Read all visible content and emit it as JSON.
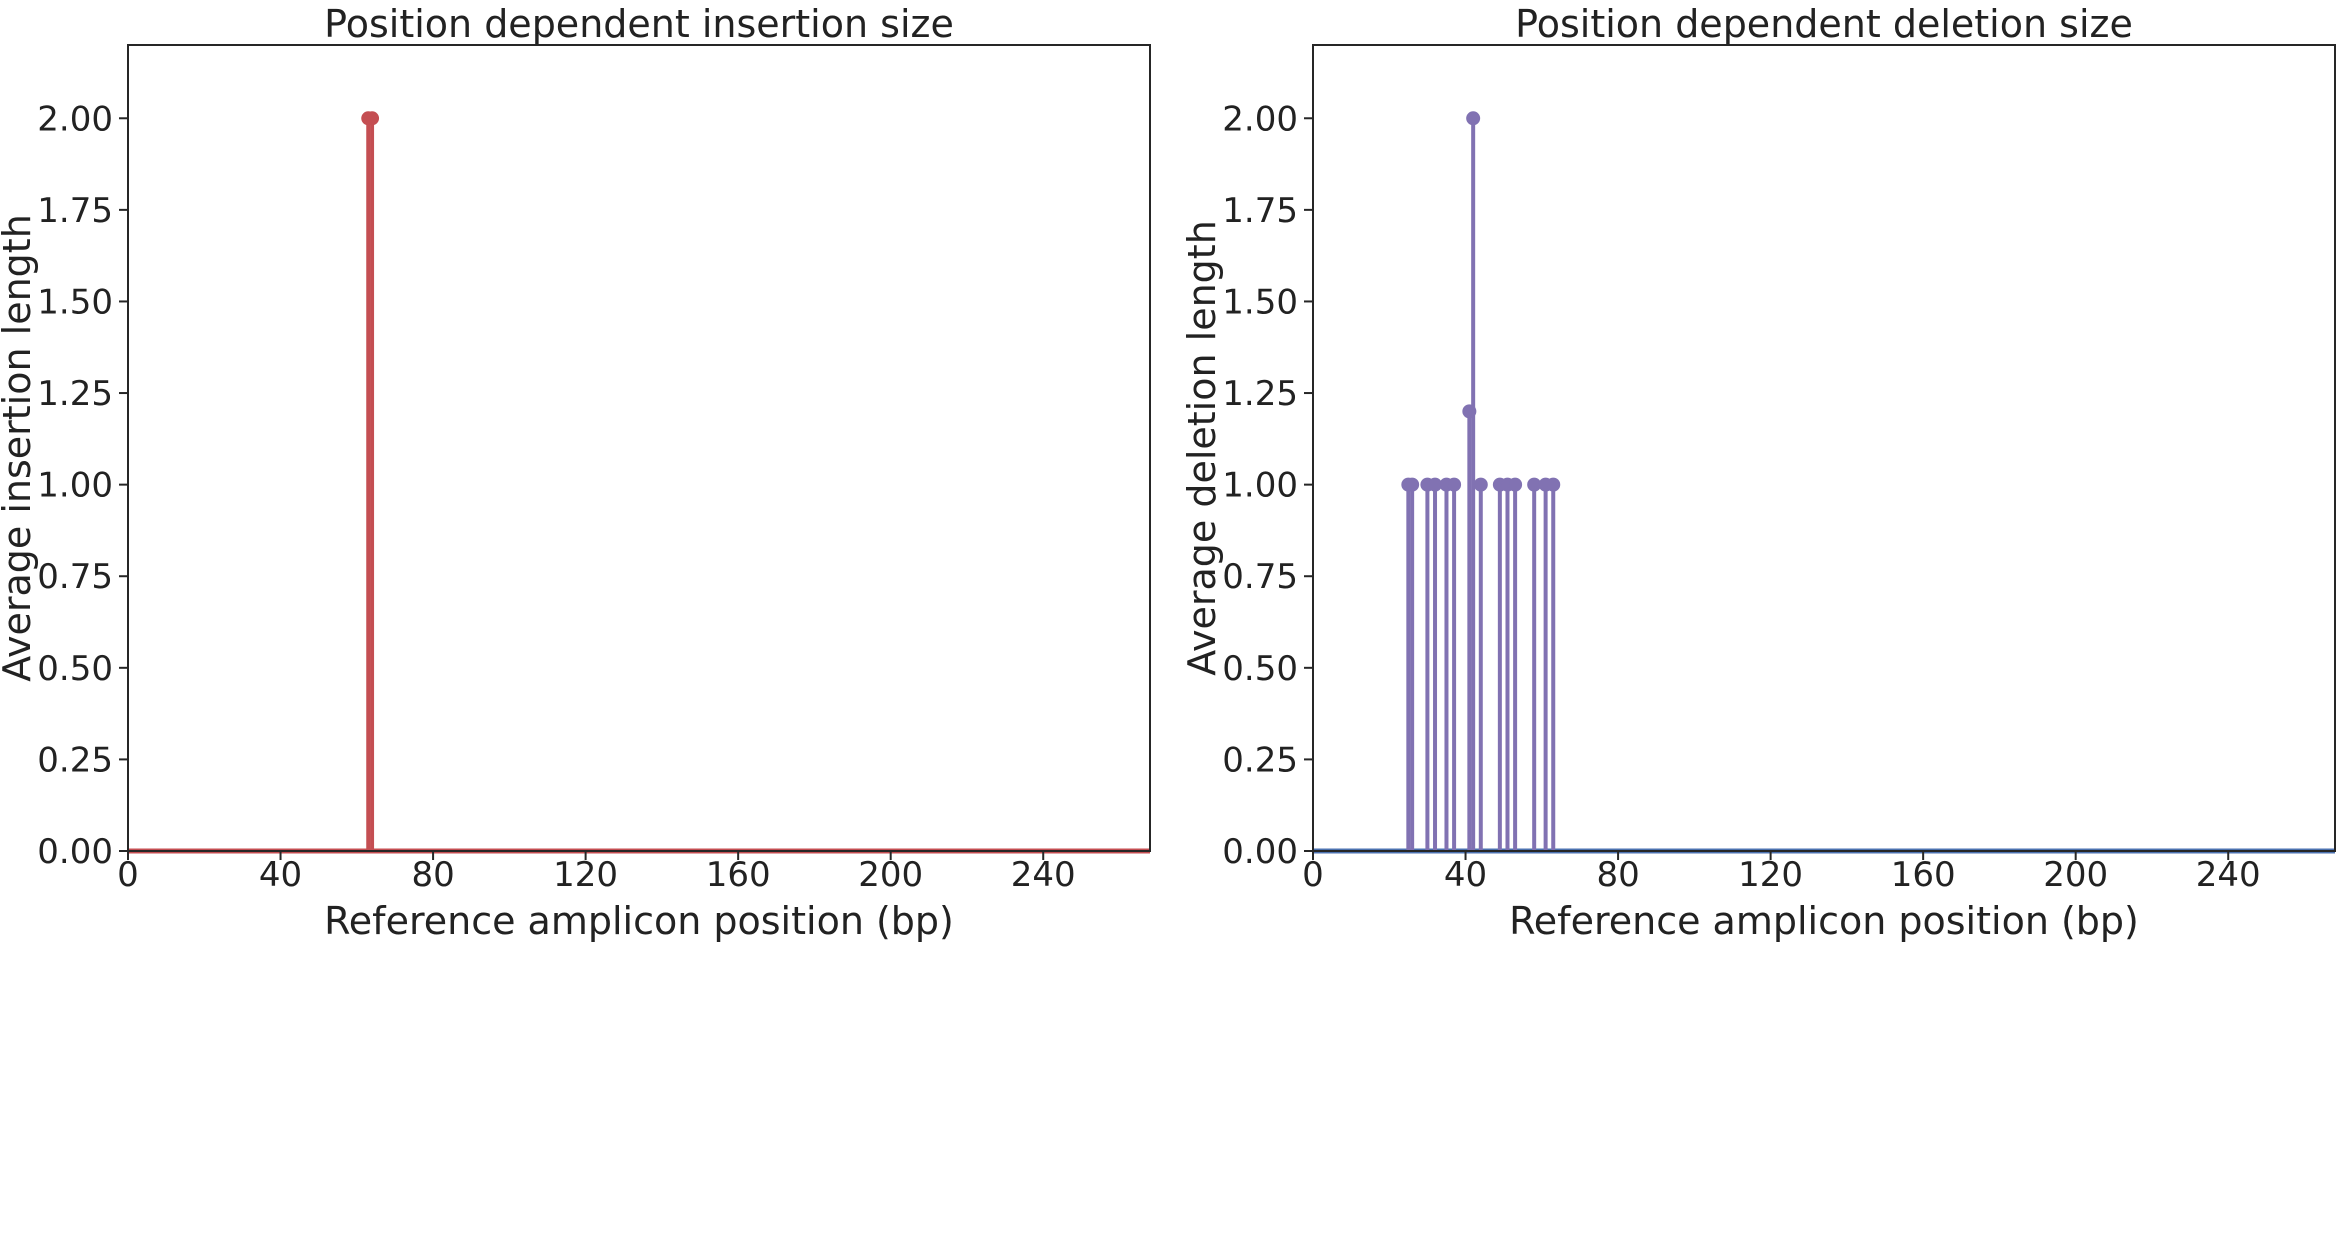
{
  "chart_data": [
    {
      "type": "stem",
      "title": "Position dependent insertion size",
      "xlabel": "Reference amplicon position (bp)",
      "ylabel": "Average insertion length",
      "xlim": [
        0,
        268
      ],
      "ylim": [
        0,
        2.2
      ],
      "xticks": [
        0,
        40,
        80,
        120,
        160,
        200,
        240
      ],
      "yticks": [
        0.0,
        0.25,
        0.5,
        0.75,
        1.0,
        1.25,
        1.5,
        1.75,
        2.0
      ],
      "ytick_labels": [
        "0.00",
        "0.25",
        "0.50",
        "0.75",
        "1.00",
        "1.25",
        "1.50",
        "1.75",
        "2.00"
      ],
      "grid": false,
      "color": "#c44e52",
      "baseline_color": "#c44e52",
      "series": [
        {
          "x": [
            63,
            64
          ],
          "y": [
            2.0,
            2.0
          ]
        }
      ]
    },
    {
      "type": "stem",
      "title": "Position dependent deletion size",
      "xlabel": "Reference amplicon position (bp)",
      "ylabel": "Average deletion length",
      "xlim": [
        0,
        268
      ],
      "ylim": [
        0,
        2.2
      ],
      "xticks": [
        0,
        40,
        80,
        120,
        160,
        200,
        240
      ],
      "yticks": [
        0.0,
        0.25,
        0.5,
        0.75,
        1.0,
        1.25,
        1.5,
        1.75,
        2.0
      ],
      "ytick_labels": [
        "0.00",
        "0.25",
        "0.50",
        "0.75",
        "1.00",
        "1.25",
        "1.50",
        "1.75",
        "2.00"
      ],
      "grid": false,
      "color": "#8172b2",
      "baseline_color": "#4c72b0",
      "series": [
        {
          "x": [
            25,
            26,
            30,
            32,
            35,
            37,
            41,
            42,
            44,
            49,
            51,
            53,
            58,
            61,
            63
          ],
          "y": [
            1.0,
            1.0,
            1.0,
            1.0,
            1.0,
            1.0,
            1.2,
            2.0,
            1.0,
            1.0,
            1.0,
            1.0,
            1.0,
            1.0,
            1.0
          ]
        }
      ]
    }
  ]
}
